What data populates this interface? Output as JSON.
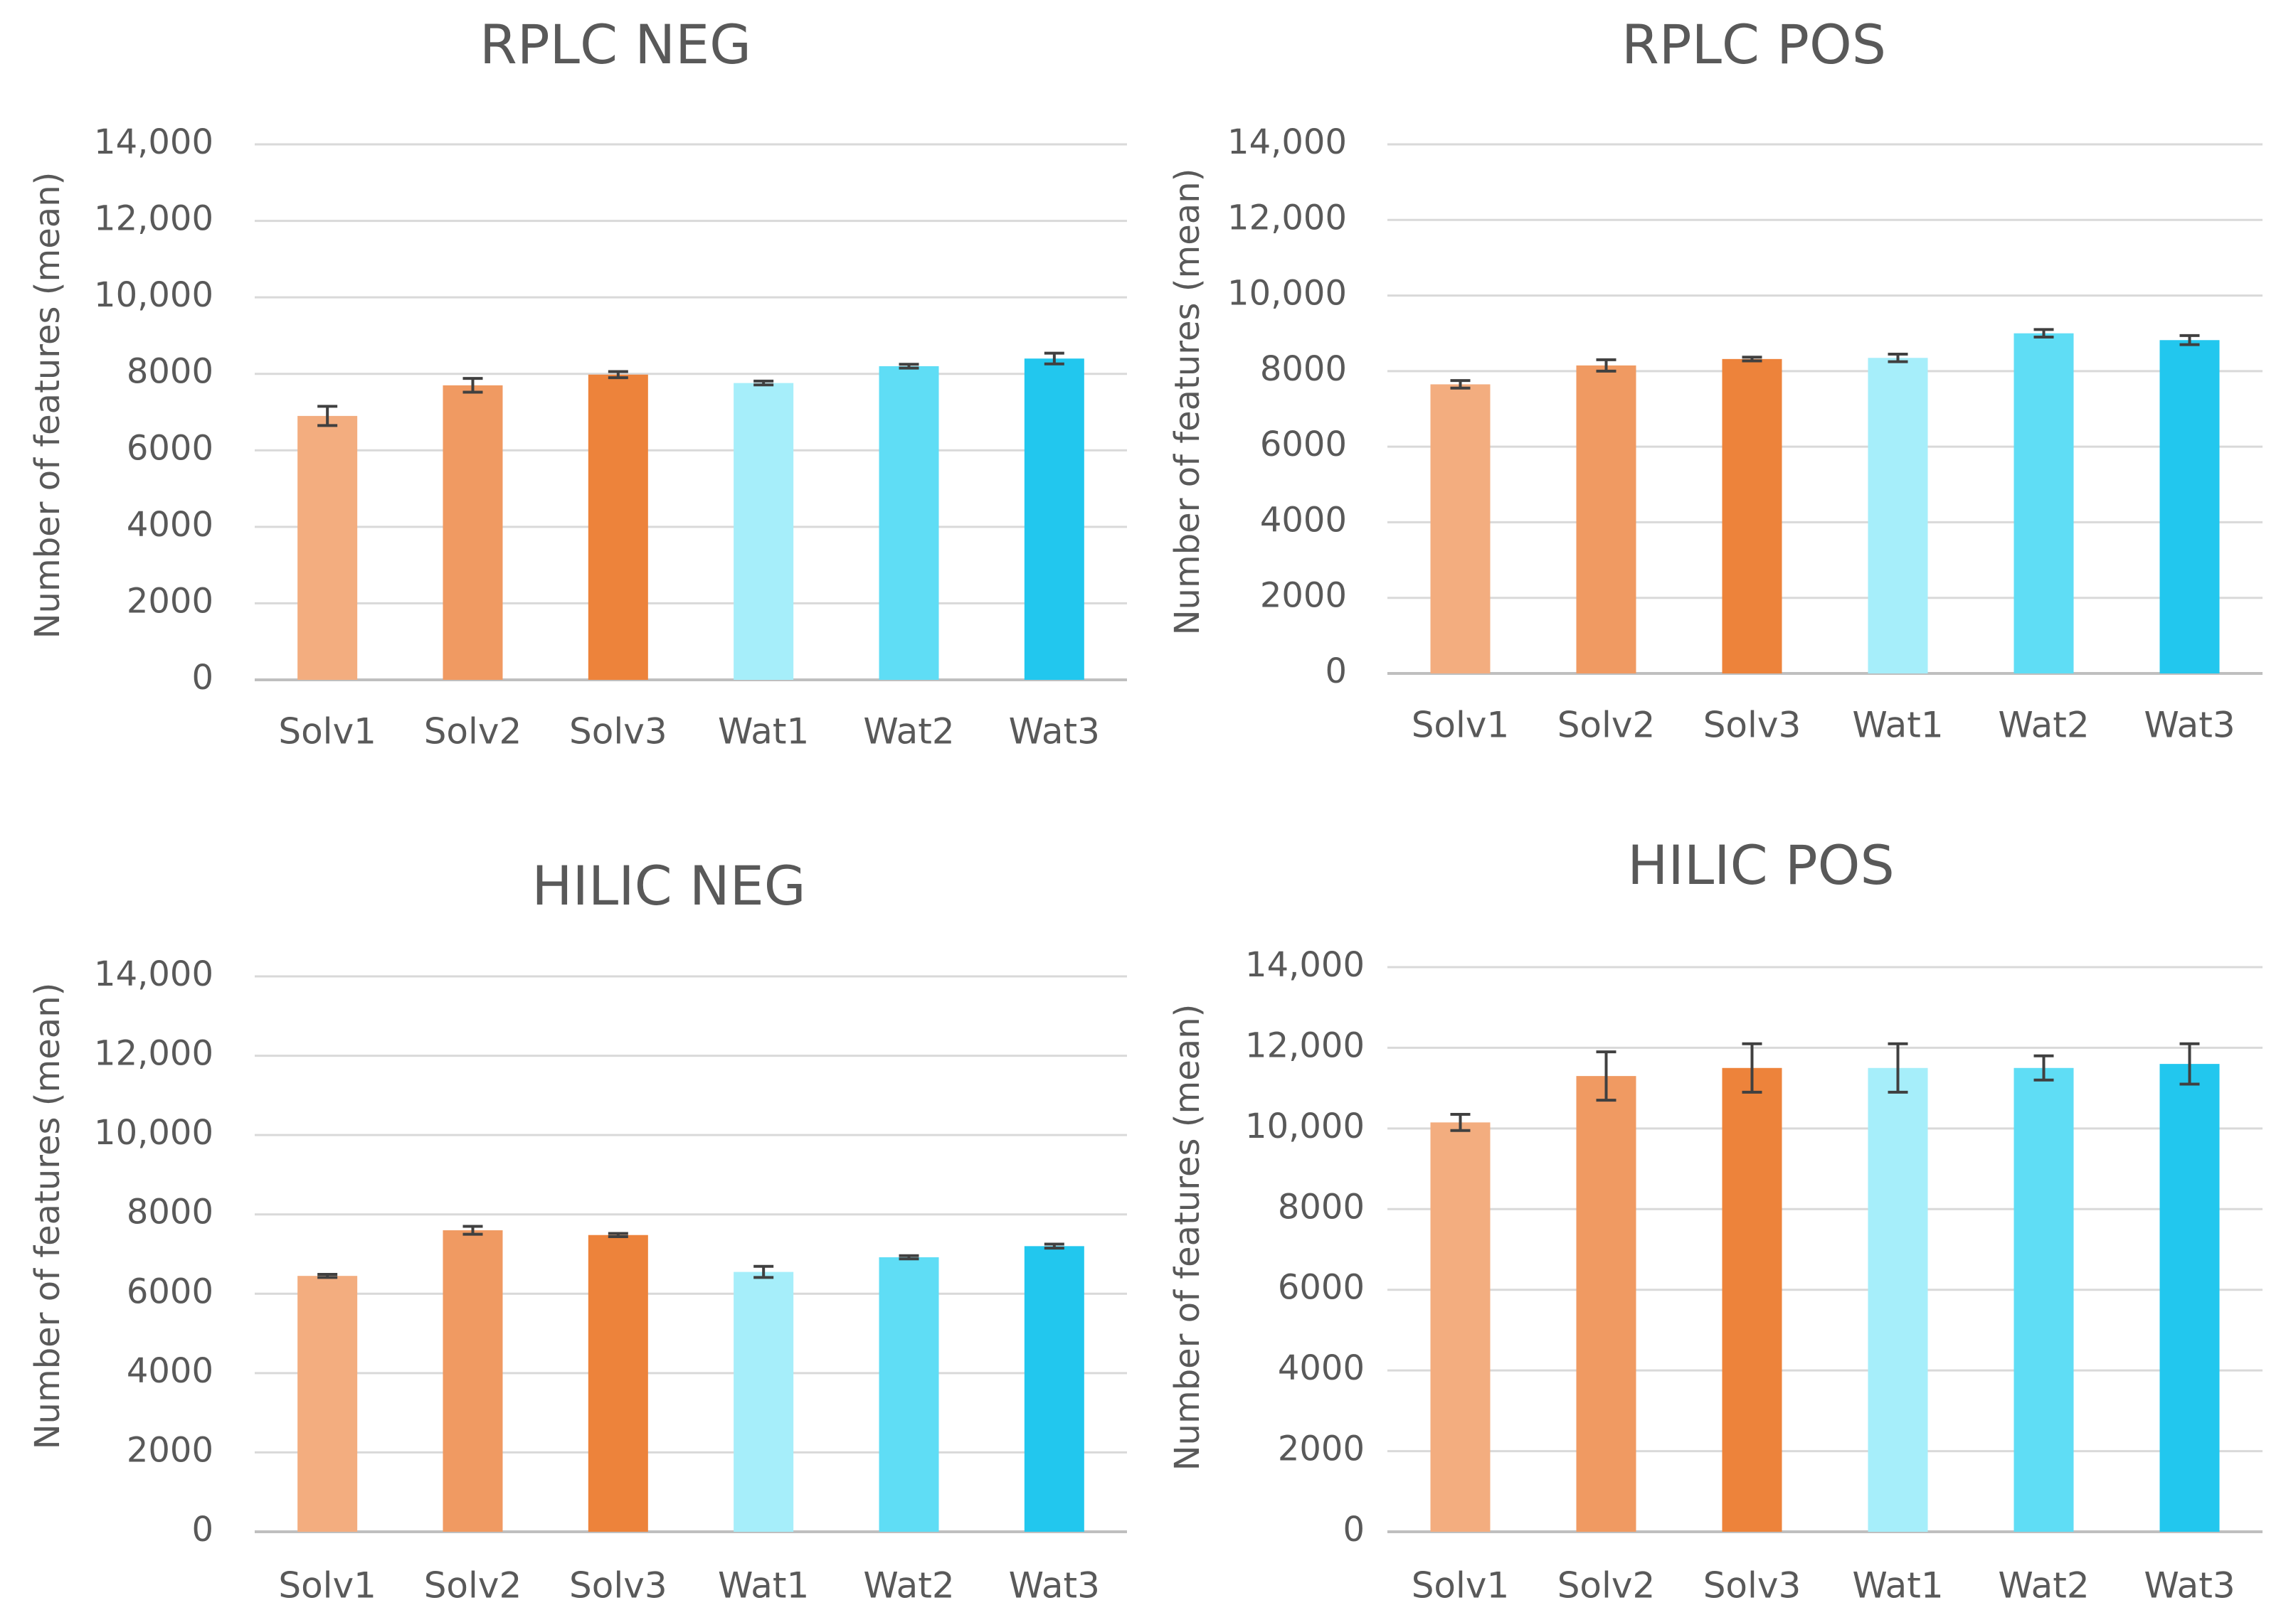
{
  "chart_data": [
    {
      "type": "bar",
      "title": "RPLC NEG",
      "xlabel": "",
      "ylabel": "Number of features (mean)",
      "ylim": [
        0,
        14000
      ],
      "yticks": [
        "0",
        "2000",
        "4000",
        "6000",
        "8000",
        "10,000",
        "12,000",
        "14,000"
      ],
      "grid": true,
      "categories": [
        "Solv1",
        "Solv2",
        "Solv3",
        "Wat1",
        "Wat2",
        "Wat3"
      ],
      "values": [
        6900,
        7700,
        7980,
        7760,
        8200,
        8400
      ],
      "errors": [
        250,
        180,
        80,
        50,
        50,
        140
      ],
      "colors": [
        "#f3ad7f",
        "#f09a62",
        "#ed833b",
        "#a6eefa",
        "#5fddf5",
        "#22c7ee"
      ]
    },
    {
      "type": "bar",
      "title": "RPLC POS",
      "xlabel": "",
      "ylabel": "Number of features (mean)",
      "ylim": [
        0,
        14000
      ],
      "yticks": [
        "0",
        "2000",
        "4000",
        "6000",
        "8000",
        "10,000",
        "12,000",
        "14,000"
      ],
      "grid": true,
      "categories": [
        "Solv1",
        "Solv2",
        "Solv3",
        "Wat1",
        "Wat2",
        "Wat3"
      ],
      "values": [
        7650,
        8150,
        8320,
        8350,
        9000,
        8820
      ],
      "errors": [
        100,
        150,
        50,
        100,
        100,
        120
      ],
      "colors": [
        "#f3ad7f",
        "#f09a62",
        "#ed833b",
        "#a6eefa",
        "#5fddf5",
        "#22c7ee"
      ]
    },
    {
      "type": "bar",
      "title": "HILIC NEG",
      "xlabel": "",
      "ylabel": "Number of features (mean)",
      "ylim": [
        0,
        14000
      ],
      "yticks": [
        "0",
        "2000",
        "4000",
        "6000",
        "8000",
        "10,000",
        "12,000",
        "14,000"
      ],
      "grid": true,
      "categories": [
        "Solv1",
        "Solv2",
        "Solv3",
        "Wat1",
        "Wat2",
        "Wat3"
      ],
      "values": [
        6450,
        7600,
        7480,
        6550,
        6920,
        7200
      ],
      "errors": [
        40,
        100,
        40,
        140,
        40,
        50
      ],
      "colors": [
        "#f3ad7f",
        "#f09a62",
        "#ed833b",
        "#a6eefa",
        "#5fddf5",
        "#22c7ee"
      ]
    },
    {
      "type": "bar",
      "title": "HILIC POS",
      "xlabel": "",
      "ylabel": "Number of features (mean)",
      "ylim": [
        0,
        14000
      ],
      "yticks": [
        "0",
        "2000",
        "4000",
        "6000",
        "8000",
        "10,000",
        "12,000",
        "14,000"
      ],
      "grid": true,
      "categories": [
        "Solv1",
        "Solv2",
        "Solv3",
        "Wat1",
        "Wat2",
        "Wat3"
      ],
      "values": [
        10150,
        11300,
        11500,
        11500,
        11500,
        11600
      ],
      "errors": [
        200,
        600,
        600,
        600,
        300,
        500
      ],
      "colors": [
        "#f3ad7f",
        "#f09a62",
        "#ed833b",
        "#a6eefa",
        "#5fddf5",
        "#22c7ee"
      ]
    }
  ]
}
